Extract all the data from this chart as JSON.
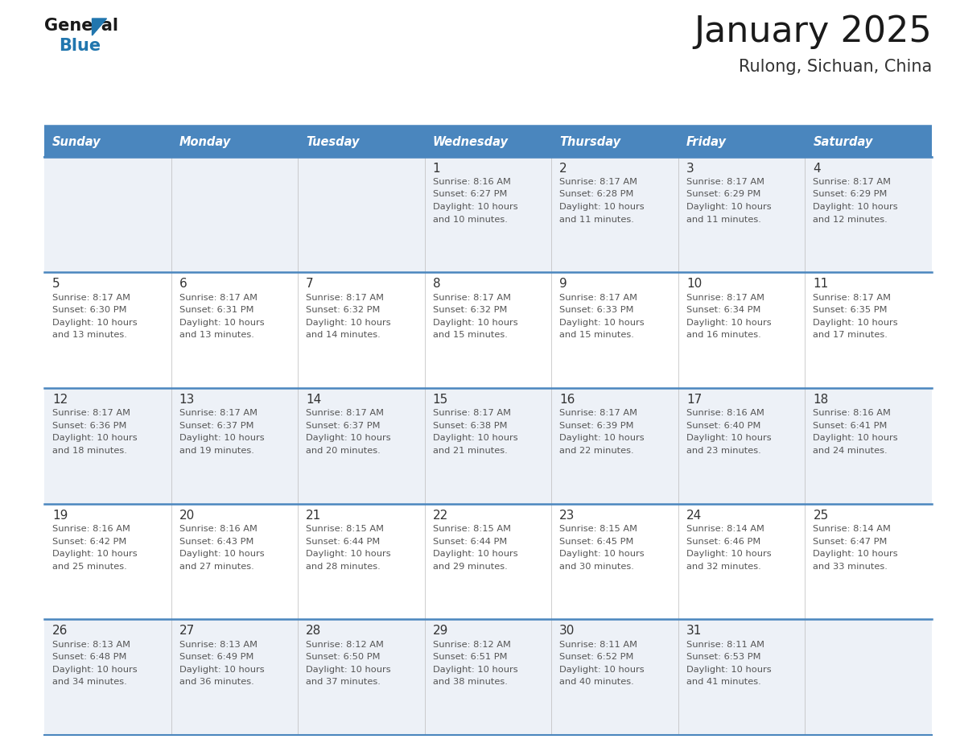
{
  "title": "January 2025",
  "subtitle": "Rulong, Sichuan, China",
  "header_bg_color": "#4a86be",
  "header_text_color": "#ffffff",
  "day_names": [
    "Sunday",
    "Monday",
    "Tuesday",
    "Wednesday",
    "Thursday",
    "Friday",
    "Saturday"
  ],
  "alt_row_color": "#edf1f7",
  "white_row_color": "#ffffff",
  "border_color": "#4a86be",
  "text_color": "#555555",
  "day_num_color": "#333333",
  "logo_general_color": "#1a1a1a",
  "logo_blue_color": "#2176ae",
  "logo_triangle_color": "#2176ae",
  "calendar_data": [
    [
      {
        "day": "",
        "sunrise": "",
        "sunset": "",
        "daylight": ""
      },
      {
        "day": "",
        "sunrise": "",
        "sunset": "",
        "daylight": ""
      },
      {
        "day": "",
        "sunrise": "",
        "sunset": "",
        "daylight": ""
      },
      {
        "day": "1",
        "sunrise": "8:16 AM",
        "sunset": "6:27 PM",
        "daylight": "10 hours\nand 10 minutes."
      },
      {
        "day": "2",
        "sunrise": "8:17 AM",
        "sunset": "6:28 PM",
        "daylight": "10 hours\nand 11 minutes."
      },
      {
        "day": "3",
        "sunrise": "8:17 AM",
        "sunset": "6:29 PM",
        "daylight": "10 hours\nand 11 minutes."
      },
      {
        "day": "4",
        "sunrise": "8:17 AM",
        "sunset": "6:29 PM",
        "daylight": "10 hours\nand 12 minutes."
      }
    ],
    [
      {
        "day": "5",
        "sunrise": "8:17 AM",
        "sunset": "6:30 PM",
        "daylight": "10 hours\nand 13 minutes."
      },
      {
        "day": "6",
        "sunrise": "8:17 AM",
        "sunset": "6:31 PM",
        "daylight": "10 hours\nand 13 minutes."
      },
      {
        "day": "7",
        "sunrise": "8:17 AM",
        "sunset": "6:32 PM",
        "daylight": "10 hours\nand 14 minutes."
      },
      {
        "day": "8",
        "sunrise": "8:17 AM",
        "sunset": "6:32 PM",
        "daylight": "10 hours\nand 15 minutes."
      },
      {
        "day": "9",
        "sunrise": "8:17 AM",
        "sunset": "6:33 PM",
        "daylight": "10 hours\nand 15 minutes."
      },
      {
        "day": "10",
        "sunrise": "8:17 AM",
        "sunset": "6:34 PM",
        "daylight": "10 hours\nand 16 minutes."
      },
      {
        "day": "11",
        "sunrise": "8:17 AM",
        "sunset": "6:35 PM",
        "daylight": "10 hours\nand 17 minutes."
      }
    ],
    [
      {
        "day": "12",
        "sunrise": "8:17 AM",
        "sunset": "6:36 PM",
        "daylight": "10 hours\nand 18 minutes."
      },
      {
        "day": "13",
        "sunrise": "8:17 AM",
        "sunset": "6:37 PM",
        "daylight": "10 hours\nand 19 minutes."
      },
      {
        "day": "14",
        "sunrise": "8:17 AM",
        "sunset": "6:37 PM",
        "daylight": "10 hours\nand 20 minutes."
      },
      {
        "day": "15",
        "sunrise": "8:17 AM",
        "sunset": "6:38 PM",
        "daylight": "10 hours\nand 21 minutes."
      },
      {
        "day": "16",
        "sunrise": "8:17 AM",
        "sunset": "6:39 PM",
        "daylight": "10 hours\nand 22 minutes."
      },
      {
        "day": "17",
        "sunrise": "8:16 AM",
        "sunset": "6:40 PM",
        "daylight": "10 hours\nand 23 minutes."
      },
      {
        "day": "18",
        "sunrise": "8:16 AM",
        "sunset": "6:41 PM",
        "daylight": "10 hours\nand 24 minutes."
      }
    ],
    [
      {
        "day": "19",
        "sunrise": "8:16 AM",
        "sunset": "6:42 PM",
        "daylight": "10 hours\nand 25 minutes."
      },
      {
        "day": "20",
        "sunrise": "8:16 AM",
        "sunset": "6:43 PM",
        "daylight": "10 hours\nand 27 minutes."
      },
      {
        "day": "21",
        "sunrise": "8:15 AM",
        "sunset": "6:44 PM",
        "daylight": "10 hours\nand 28 minutes."
      },
      {
        "day": "22",
        "sunrise": "8:15 AM",
        "sunset": "6:44 PM",
        "daylight": "10 hours\nand 29 minutes."
      },
      {
        "day": "23",
        "sunrise": "8:15 AM",
        "sunset": "6:45 PM",
        "daylight": "10 hours\nand 30 minutes."
      },
      {
        "day": "24",
        "sunrise": "8:14 AM",
        "sunset": "6:46 PM",
        "daylight": "10 hours\nand 32 minutes."
      },
      {
        "day": "25",
        "sunrise": "8:14 AM",
        "sunset": "6:47 PM",
        "daylight": "10 hours\nand 33 minutes."
      }
    ],
    [
      {
        "day": "26",
        "sunrise": "8:13 AM",
        "sunset": "6:48 PM",
        "daylight": "10 hours\nand 34 minutes."
      },
      {
        "day": "27",
        "sunrise": "8:13 AM",
        "sunset": "6:49 PM",
        "daylight": "10 hours\nand 36 minutes."
      },
      {
        "day": "28",
        "sunrise": "8:12 AM",
        "sunset": "6:50 PM",
        "daylight": "10 hours\nand 37 minutes."
      },
      {
        "day": "29",
        "sunrise": "8:12 AM",
        "sunset": "6:51 PM",
        "daylight": "10 hours\nand 38 minutes."
      },
      {
        "day": "30",
        "sunrise": "8:11 AM",
        "sunset": "6:52 PM",
        "daylight": "10 hours\nand 40 minutes."
      },
      {
        "day": "31",
        "sunrise": "8:11 AM",
        "sunset": "6:53 PM",
        "daylight": "10 hours\nand 41 minutes."
      },
      {
        "day": "",
        "sunrise": "",
        "sunset": "",
        "daylight": ""
      }
    ]
  ]
}
